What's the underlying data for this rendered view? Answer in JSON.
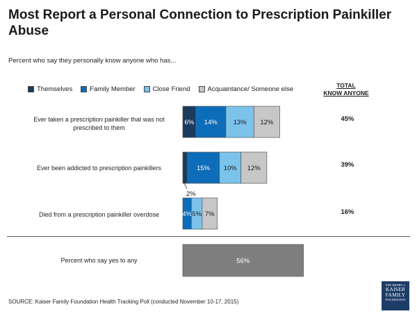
{
  "title": "Most Report a Personal Connection to Prescription Painkiller Abuse",
  "subtitle": "Percent who say they personally know anyone who has...",
  "colors": {
    "themselves": "#1b3a5c",
    "family": "#0e6db8",
    "friend": "#7cc3ec",
    "acquaintance": "#c7c7c7",
    "any": "#7f7f7f"
  },
  "chart_data": {
    "type": "bar",
    "orientation": "horizontal",
    "stacked": true,
    "legend": [
      "Themselves",
      "Family Member",
      "Close Friend",
      "Acquaintance/ Someone else"
    ],
    "total_header": "TOTAL KNOW ANYONE",
    "total_header_lines": [
      "TOTAL",
      "KNOW ANYONE"
    ],
    "rows": [
      {
        "label": "Ever taken a prescription painkiller that was not prescribed to them",
        "label_lines": [
          "Ever taken a prescription painkiller that was not",
          "prescribed to them"
        ],
        "values": [
          6,
          14,
          13,
          12
        ],
        "labels": [
          "6%",
          "14%",
          "13%",
          "12%"
        ],
        "total": "45%"
      },
      {
        "label": "Ever been addicted to prescription painkillers",
        "label_lines": [
          "Ever been addicted to prescription painkillers"
        ],
        "values": [
          2,
          15,
          10,
          12
        ],
        "labels": [
          "",
          "15%",
          "10%",
          "12%"
        ],
        "callout": "2%",
        "total": "39%"
      },
      {
        "label": "Died from a prescription painkiller overdose",
        "label_lines": [
          "Died from a prescription painkiller overdose"
        ],
        "values": [
          0,
          4,
          5,
          7
        ],
        "labels": [
          "",
          "4%",
          "5%",
          "7%"
        ],
        "total": "16%"
      }
    ],
    "any": {
      "label": "Percent who say yes to any",
      "value": 56,
      "value_label": "56%"
    }
  },
  "source": "SOURCE: Kaiser Family Foundation Health Tracking Poll (conducted November 10-17, 2015)",
  "logo": {
    "line1": "THE HENRY J.",
    "line2": "KAISER",
    "line3": "FAMILY",
    "line4": "FOUNDATION"
  }
}
